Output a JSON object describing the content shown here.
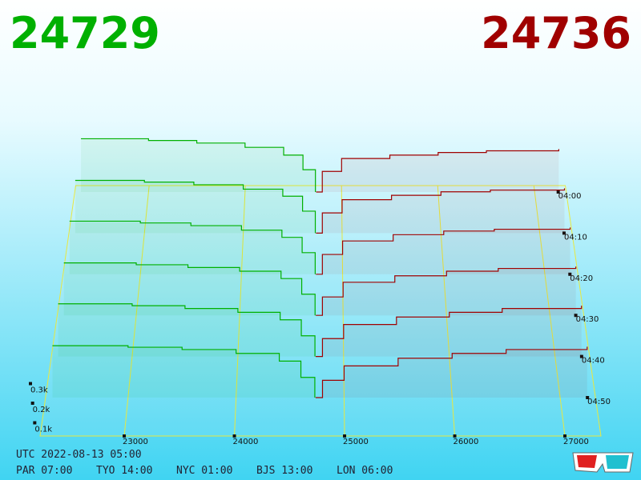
{
  "chart_data": {
    "type": "depth3d",
    "bid_price": 24729,
    "ask_price": 24736,
    "bid_color": "#00b000",
    "ask_color": "#a00000",
    "xlim": [
      22236,
      27327
    ],
    "xticks": [
      23000,
      24000,
      25000,
      26000,
      27000
    ],
    "depth_ticks": [
      {
        "value": 300,
        "label": "0.3k"
      },
      {
        "value": 200,
        "label": "0.2k"
      },
      {
        "value": 100,
        "label": "0.1k"
      }
    ],
    "times": [
      "04:00",
      "04:10",
      "04:20",
      "04:30",
      "04:40",
      "04:50"
    ],
    "snapshots": [
      {
        "bids": {
          "x": [
            22300,
            23000,
            23500,
            24000,
            24400,
            24600,
            24729
          ],
          "values": [
            310,
            300,
            285,
            260,
            215,
            130,
            0
          ]
        },
        "asks": {
          "x": [
            24736,
            24800,
            25000,
            25500,
            26000,
            26500,
            27250
          ],
          "values": [
            0,
            120,
            195,
            215,
            230,
            240,
            250
          ]
        }
      },
      {
        "bids": {
          "x": [
            22300,
            23000,
            23500,
            24000,
            24400,
            24600,
            24729
          ],
          "values": [
            300,
            290,
            275,
            250,
            210,
            125,
            0
          ]
        },
        "asks": {
          "x": [
            24736,
            24800,
            25000,
            25500,
            26000,
            26500,
            27250
          ],
          "values": [
            0,
            115,
            190,
            215,
            235,
            245,
            255
          ]
        }
      },
      {
        "bids": {
          "x": [
            22300,
            23000,
            23500,
            24000,
            24400,
            24600,
            24729
          ],
          "values": [
            295,
            285,
            270,
            245,
            205,
            120,
            0
          ]
        },
        "asks": {
          "x": [
            24736,
            24800,
            25000,
            25500,
            26000,
            26500,
            27250
          ],
          "values": [
            0,
            110,
            185,
            220,
            240,
            250,
            260
          ]
        }
      },
      {
        "bids": {
          "x": [
            22300,
            23000,
            23500,
            24000,
            24400,
            24600,
            24729
          ],
          "values": [
            285,
            275,
            260,
            240,
            200,
            115,
            0
          ]
        },
        "asks": {
          "x": [
            24736,
            24800,
            25000,
            25500,
            26000,
            26500,
            27250
          ],
          "values": [
            0,
            100,
            180,
            215,
            240,
            255,
            265
          ]
        }
      },
      {
        "bids": {
          "x": [
            22300,
            23000,
            23500,
            24000,
            24400,
            24600,
            24729
          ],
          "values": [
            280,
            270,
            255,
            235,
            195,
            110,
            0
          ]
        },
        "asks": {
          "x": [
            24736,
            24800,
            25000,
            25500,
            26000,
            26500,
            27250
          ],
          "values": [
            0,
            95,
            170,
            210,
            235,
            255,
            270
          ]
        }
      },
      {
        "bids": {
          "x": [
            22300,
            23000,
            23500,
            24000,
            24400,
            24600,
            24729
          ],
          "values": [
            270,
            262,
            250,
            230,
            190,
            105,
            0
          ]
        },
        "asks": {
          "x": [
            24736,
            24800,
            25000,
            25500,
            26000,
            26500,
            27250
          ],
          "values": [
            0,
            90,
            165,
            205,
            230,
            250,
            265
          ]
        }
      }
    ],
    "utc_label": "UTC 2022-08-13 05:00",
    "clocks": [
      "PAR 07:00",
      "TYO 14:00",
      "NYC 01:00",
      "BJS 13:00",
      "LON 06:00"
    ]
  }
}
